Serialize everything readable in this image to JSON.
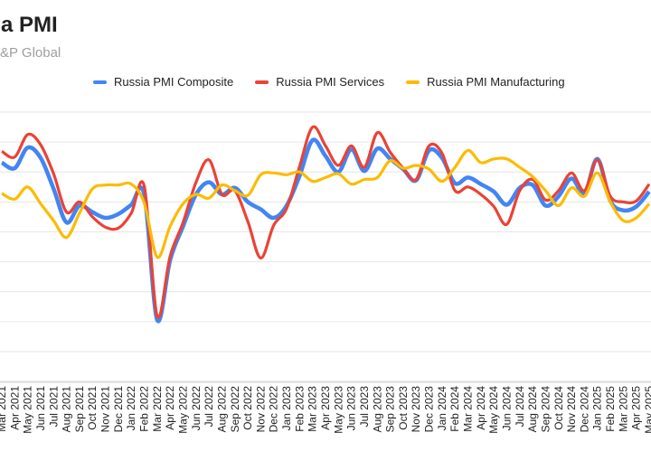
{
  "header": {
    "title": "a PMI",
    "subtitle": "&P Global"
  },
  "chart_data": {
    "type": "line",
    "smooth": true,
    "grid": true,
    "legend_position": "top",
    "x_categories": [
      "Mar 2021",
      "Apr 2021",
      "May 2021",
      "Jun 2021",
      "Jul 2021",
      "Aug 2021",
      "Sep 2021",
      "Oct 2021",
      "Nov 2021",
      "Dec 2021",
      "Jan 2022",
      "Feb 2022",
      "Mar 2022",
      "Apr 2022",
      "May 2022",
      "Jun 2022",
      "Jul 2022",
      "Aug 2022",
      "Sep 2022",
      "Oct 2022",
      "Nov 2022",
      "Dec 2022",
      "Jan 2023",
      "Feb 2023",
      "Mar 2023",
      "Apr 2023",
      "May 2023",
      "Jun 2023",
      "Jul 2023",
      "Aug 2023",
      "Sep 2023",
      "Oct 2023",
      "Nov 2023",
      "Dec 2023",
      "Jan 2024",
      "Feb 2024",
      "Mar 2024",
      "Apr 2024",
      "May 2024",
      "Jun 2024",
      "Jul 2024",
      "Aug 2024",
      "Sep 2024",
      "Oct 2024",
      "Nov 2024",
      "Dec 2024",
      "Jan 2025",
      "Feb 2025",
      "Mar 2025",
      "Apr 2025",
      "May 2025"
    ],
    "series": [
      {
        "name": "Russia PMI Composite",
        "color": "#4285F4",
        "values": [
          54.6,
          54.0,
          56.2,
          55.1,
          51.8,
          48.2,
          50.0,
          49.3,
          48.7,
          49.1,
          50.1,
          51.2,
          37.8,
          44.2,
          47.8,
          51.2,
          52.5,
          51.2,
          51.9,
          50.4,
          49.6,
          48.7,
          50.0,
          53.2,
          57.0,
          55.3,
          53.6,
          56.0,
          53.7,
          56.1,
          55.0,
          53.9,
          52.7,
          55.9,
          55.1,
          52.4,
          53.0,
          52.3,
          51.5,
          50.1,
          51.9,
          52.2,
          50.0,
          51.0,
          52.9,
          51.3,
          55.0,
          50.5,
          49.5,
          49.9,
          51.5
        ]
      },
      {
        "name": "Russia PMI Services",
        "color": "#EA4335",
        "values": [
          55.8,
          55.2,
          57.6,
          56.5,
          53.4,
          49.3,
          50.4,
          48.8,
          47.7,
          47.6,
          49.2,
          52.1,
          38.2,
          44.6,
          48.2,
          52.5,
          54.9,
          51.2,
          51.6,
          48.3,
          44.4,
          47.9,
          49.7,
          54.2,
          58.4,
          56.4,
          54.3,
          56.4,
          54.1,
          57.8,
          55.7,
          54.0,
          52.8,
          56.4,
          55.6,
          51.6,
          52.0,
          51.2,
          49.9,
          48.0,
          51.6,
          52.8,
          50.6,
          51.6,
          53.5,
          51.6,
          54.9,
          51.0,
          50.4,
          50.5,
          52.3
        ]
      },
      {
        "name": "Russia PMI Manufacturing",
        "color": "#FBBC04",
        "values": [
          51.3,
          50.7,
          52.0,
          50.2,
          48.4,
          46.6,
          49.2,
          51.8,
          52.2,
          52.2,
          52.3,
          50.3,
          44.5,
          47.8,
          50.2,
          51.2,
          50.8,
          52.2,
          51.6,
          51.1,
          53.3,
          53.5,
          53.3,
          53.6,
          52.6,
          53.0,
          53.4,
          52.3,
          52.8,
          53.0,
          54.8,
          54.0,
          54.3,
          53.9,
          52.6,
          54.1,
          55.9,
          54.6,
          55.0,
          55.0,
          54.1,
          53.1,
          51.6,
          50.0,
          51.9,
          51.0,
          53.5,
          50.4,
          48.4,
          48.7,
          50.2
        ]
      }
    ],
    "y_axis": {
      "labels_visible": false,
      "approx_range": [
        31,
        61
      ]
    }
  },
  "colors": {
    "background": "#ffffff",
    "gridline": "#e6e6e6",
    "baseline": "#d9d9d9",
    "title_text": "#212121",
    "subtitle_text": "#9e9e9e",
    "legend_text": "#1f1f1f",
    "axis_label_text": "#1f1f1f"
  }
}
